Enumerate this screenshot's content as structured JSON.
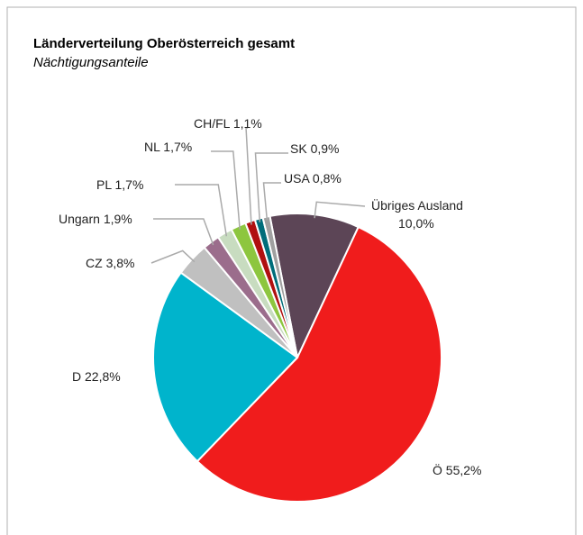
{
  "chart_data": {
    "type": "pie",
    "title": "Länderverteilung Oberösterreich gesamt",
    "subtitle": "Nächtigungsanteile",
    "categories": [
      "Übriges Ausland",
      "Ö",
      "D",
      "CZ",
      "Ungarn",
      "PL",
      "NL",
      "CH/FL",
      "SK",
      "USA"
    ],
    "values": [
      10.0,
      55.2,
      22.8,
      3.8,
      1.9,
      1.7,
      1.7,
      1.1,
      0.9,
      0.8
    ],
    "value_labels": [
      "10,0%",
      "55,2%",
      "22,8%",
      "3,8%",
      "1,9%",
      "1,7%",
      "1,7%",
      "1,1%",
      "0,9%",
      "0,8%"
    ],
    "colors": [
      "#5c4556",
      "#f01c1c",
      "#00b4cc",
      "#c0c0c0",
      "#9b6d8c",
      "#c8dcc0",
      "#8dc63f",
      "#b01010",
      "#006d7a",
      "#a0a0a0"
    ]
  }
}
